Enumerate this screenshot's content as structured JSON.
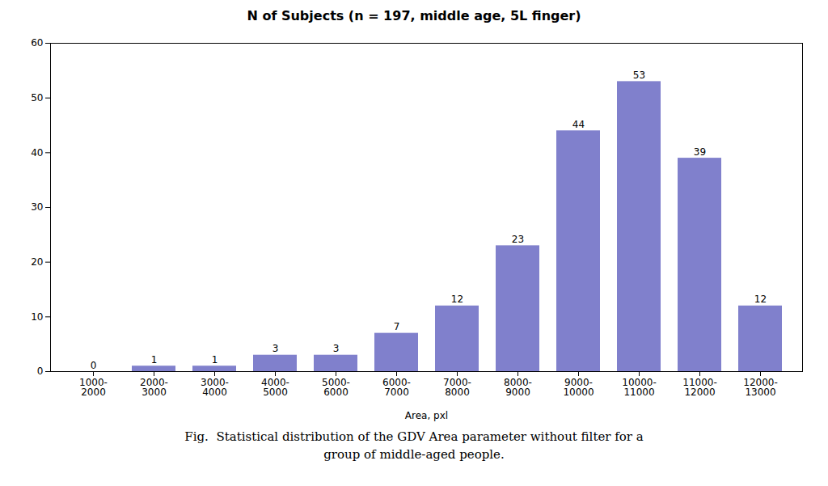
{
  "chart_data": {
    "type": "bar",
    "title": "N of Subjects (n = 197, middle age, 5L finger)",
    "xlabel": "Area, pxl",
    "categories": [
      "1000-\n2000",
      "2000-\n3000",
      "3000-\n4000",
      "4000-\n5000",
      "5000-\n6000",
      "6000-\n7000",
      "7000-\n8000",
      "8000-\n9000",
      "9000-\n10000",
      "10000-\n11000",
      "11000-\n12000",
      "12000-\n13000"
    ],
    "values": [
      0,
      1,
      1,
      3,
      3,
      7,
      12,
      23,
      44,
      53,
      39,
      12
    ],
    "color": "#8080cc",
    "ylim": [
      0,
      60
    ],
    "yticks": [
      0,
      10,
      20,
      30,
      40,
      50,
      60
    ],
    "grid": false,
    "data_labels": true,
    "annotations": [
      "Fig.  Statistical distribution of the GDV Area parameter without filter for a",
      "group of middle-aged people."
    ]
  }
}
